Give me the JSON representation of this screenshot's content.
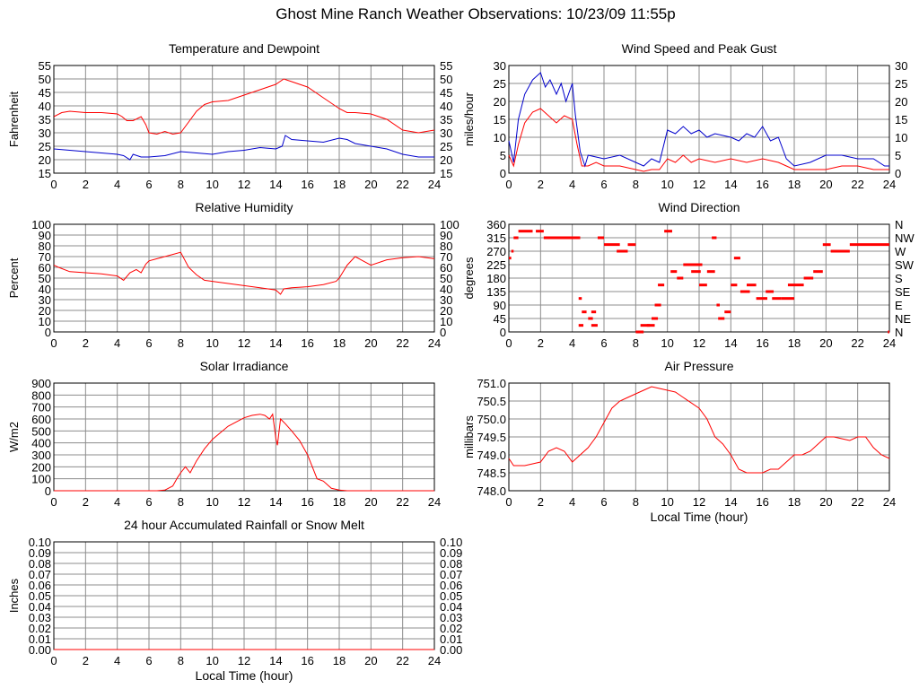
{
  "page": {
    "title": "Ghost Mine Ranch Weather Observations: 10/23/09 11:55p"
  },
  "colors": {
    "grid": "#8c8c8c",
    "frame": "#000000",
    "red": "#ff0000",
    "blue": "#0000cc"
  },
  "chart_data": [
    {
      "id": "temp",
      "type": "line",
      "title": "Temperature and Dewpoint",
      "xlabel": "",
      "ylabel": "Fahrenheit",
      "xlim": [
        0,
        24
      ],
      "ylim": [
        15,
        55
      ],
      "xticks": [
        "0",
        "2",
        "4",
        "6",
        "8",
        "10",
        "12",
        "14",
        "16",
        "18",
        "20",
        "22",
        "24"
      ],
      "yticks": [
        "15",
        "20",
        "25",
        "30",
        "35",
        "40",
        "45",
        "50",
        "55"
      ],
      "right_yticks": [
        "15",
        "20",
        "25",
        "30",
        "35",
        "40",
        "45",
        "50",
        "55"
      ],
      "series": [
        {
          "color": "#ff0000",
          "x": [
            0,
            0.5,
            1,
            2,
            3,
            4,
            4.3,
            4.6,
            5,
            5.5,
            5.8,
            6,
            6.5,
            7,
            7.5,
            8,
            8.5,
            9,
            9.5,
            10,
            11,
            12,
            13,
            14,
            14.5,
            15,
            16,
            17,
            18,
            18.5,
            19,
            20,
            21,
            22,
            22.5,
            23,
            24
          ],
          "y": [
            36,
            37.5,
            38,
            37.5,
            37.5,
            37,
            36,
            34.5,
            34.5,
            36,
            33,
            30,
            29.5,
            30.5,
            29.5,
            30,
            34,
            38,
            40.5,
            41.5,
            42,
            44,
            46,
            48,
            50,
            49,
            47,
            43,
            39,
            37.5,
            37.5,
            37,
            35,
            31,
            30.5,
            30,
            31
          ]
        },
        {
          "color": "#0000cc",
          "x": [
            0,
            1,
            2,
            3,
            4,
            4.4,
            4.8,
            5,
            5.5,
            6,
            7,
            8,
            9,
            10,
            11,
            12,
            13,
            14,
            14.4,
            14.6,
            15,
            16,
            17,
            18,
            18.5,
            19,
            20,
            21,
            22,
            23,
            24
          ],
          "y": [
            24,
            23.5,
            23,
            22.5,
            22,
            21.5,
            20,
            22,
            21,
            21,
            21.5,
            23,
            22.5,
            22,
            23,
            23.5,
            24.5,
            24,
            25,
            29,
            27.5,
            27,
            26.5,
            28,
            27.5,
            26,
            25,
            24,
            22,
            21,
            21
          ]
        }
      ]
    },
    {
      "id": "wind",
      "type": "line",
      "title": "Wind Speed and Peak Gust",
      "xlabel": "",
      "ylabel": "miles/hour",
      "xlim": [
        0,
        24
      ],
      "ylim": [
        0,
        30
      ],
      "xticks": [
        "0",
        "2",
        "4",
        "6",
        "8",
        "10",
        "12",
        "14",
        "16",
        "18",
        "20",
        "22",
        "24"
      ],
      "yticks": [
        "0",
        "5",
        "10",
        "15",
        "20",
        "25",
        "30"
      ],
      "right_yticks": [
        "0",
        "5",
        "10",
        "15",
        "20",
        "25",
        "30"
      ],
      "series": [
        {
          "color": "#ff0000",
          "x": [
            0,
            0.3,
            0.6,
            1,
            1.5,
            2,
            2.5,
            3,
            3.5,
            4,
            4.3,
            4.6,
            5,
            5.5,
            6,
            7,
            8,
            8.5,
            9,
            9.5,
            10,
            10.5,
            11,
            11.5,
            12,
            13,
            14,
            15,
            16,
            17,
            17.5,
            18,
            19,
            20,
            21,
            22,
            23,
            23.7,
            24
          ],
          "y": [
            5,
            2,
            8,
            14,
            17,
            18,
            16,
            14,
            16,
            15,
            8,
            2,
            2,
            3,
            2,
            2,
            1,
            0.5,
            1,
            1,
            4,
            3,
            5,
            3,
            4,
            3,
            4,
            3,
            4,
            3,
            2,
            1,
            1,
            1,
            2,
            2,
            1,
            1,
            1
          ]
        },
        {
          "color": "#0000cc",
          "x": [
            0,
            0.3,
            0.6,
            1,
            1.5,
            2,
            2.3,
            2.6,
            3,
            3.3,
            3.6,
            4,
            4.2,
            4.5,
            4.8,
            5,
            6,
            7,
            8,
            8.5,
            9,
            9.5,
            10,
            10.5,
            11,
            11.5,
            12,
            12.5,
            13,
            14,
            14.5,
            15,
            15.5,
            16,
            16.5,
            17,
            17.5,
            18,
            19,
            20,
            21,
            22,
            23,
            23.7,
            24
          ],
          "y": [
            9,
            3,
            15,
            22,
            26,
            28,
            24,
            26,
            22,
            25,
            20,
            25,
            16,
            6,
            2,
            5,
            4,
            5,
            3,
            2,
            4,
            3,
            12,
            11,
            13,
            11,
            12,
            10,
            11,
            10,
            9,
            11,
            10,
            13,
            9,
            10,
            4,
            2,
            3,
            5,
            5,
            4,
            4,
            2,
            2
          ]
        }
      ]
    },
    {
      "id": "rh",
      "type": "line",
      "title": "Relative Humidity",
      "xlabel": "",
      "ylabel": "Percent",
      "xlim": [
        0,
        24
      ],
      "ylim": [
        0,
        100
      ],
      "xticks": [
        "0",
        "2",
        "4",
        "6",
        "8",
        "10",
        "12",
        "14",
        "16",
        "18",
        "20",
        "22",
        "24"
      ],
      "yticks": [
        "0",
        "10",
        "20",
        "30",
        "40",
        "50",
        "60",
        "70",
        "80",
        "90",
        "100"
      ],
      "right_yticks": [
        "0",
        "10",
        "20",
        "30",
        "40",
        "50",
        "60",
        "70",
        "80",
        "90",
        "100"
      ],
      "series": [
        {
          "color": "#ff0000",
          "x": [
            0,
            0.3,
            1,
            2,
            3,
            4,
            4.4,
            4.8,
            5.2,
            5.5,
            5.8,
            6,
            6.5,
            7,
            7.5,
            8,
            8.5,
            9,
            9.5,
            10,
            11,
            12,
            13,
            14,
            14.3,
            14.5,
            15,
            16,
            17,
            17.8,
            18,
            18.5,
            19,
            19.5,
            20,
            21,
            22,
            23,
            24
          ],
          "y": [
            62,
            60,
            56,
            55,
            54,
            52,
            48,
            55,
            58,
            55,
            63,
            66,
            68,
            70,
            72,
            74,
            60,
            53,
            48,
            47,
            45,
            43,
            41,
            39,
            35,
            40,
            41,
            42,
            44,
            47,
            50,
            62,
            70,
            66,
            62,
            67,
            69,
            70,
            68
          ]
        }
      ]
    },
    {
      "id": "winddir",
      "type": "scatter",
      "title": "Wind Direction",
      "xlabel": "",
      "ylabel": "degrees",
      "xlim": [
        0,
        24
      ],
      "ylim": [
        0,
        360
      ],
      "xticks": [
        "0",
        "2",
        "4",
        "6",
        "8",
        "10",
        "12",
        "14",
        "16",
        "18",
        "20",
        "22",
        "24"
      ],
      "yticks": [
        "0",
        "45",
        "90",
        "135",
        "180",
        "225",
        "270",
        "315",
        "360"
      ],
      "right_yticks": [
        "N",
        "NE",
        "E",
        "SE",
        "S",
        "SW",
        "W",
        "NW",
        "N"
      ],
      "series": [
        {
          "color": "#ff0000",
          "segments": [
            [
              0,
              0.15,
              247
            ],
            [
              0.15,
              0.3,
              270
            ],
            [
              0.3,
              0.6,
              315
            ],
            [
              0.6,
              1.5,
              337
            ],
            [
              1.7,
              2.2,
              337
            ],
            [
              2.2,
              4.5,
              315
            ],
            [
              4.4,
              4.6,
              112
            ],
            [
              4.6,
              4.9,
              67
            ],
            [
              4.4,
              4.7,
              22
            ],
            [
              5.2,
              5.6,
              22
            ],
            [
              5.0,
              5.3,
              45
            ],
            [
              5.2,
              5.5,
              67
            ],
            [
              5.6,
              6,
              315
            ],
            [
              6,
              7,
              292
            ],
            [
              6.8,
              7.5,
              270
            ],
            [
              7.5,
              8,
              292
            ],
            [
              8,
              8.5,
              0
            ],
            [
              8.3,
              8.9,
              22
            ],
            [
              8.7,
              9.2,
              22
            ],
            [
              9.0,
              9.4,
              45
            ],
            [
              9.2,
              9.6,
              90
            ],
            [
              9.4,
              9.8,
              157
            ],
            [
              9.8,
              10.3,
              337
            ],
            [
              10.2,
              10.6,
              202
            ],
            [
              10.6,
              11,
              180
            ],
            [
              11,
              12.2,
              225
            ],
            [
              11.5,
              12.1,
              202
            ],
            [
              12,
              12.5,
              157
            ],
            [
              12.5,
              13,
              202
            ],
            [
              12.8,
              13.1,
              315
            ],
            [
              13.1,
              13.3,
              90
            ],
            [
              13.2,
              13.6,
              45
            ],
            [
              13.6,
              14,
              67
            ],
            [
              14,
              14.4,
              157
            ],
            [
              14.2,
              14.6,
              247
            ],
            [
              14.6,
              15.2,
              135
            ],
            [
              15,
              15.6,
              157
            ],
            [
              15.6,
              16.3,
              112
            ],
            [
              16.2,
              16.7,
              135
            ],
            [
              16.6,
              17.2,
              112
            ],
            [
              17.2,
              18,
              112
            ],
            [
              17.6,
              18.6,
              157
            ],
            [
              18.6,
              19.2,
              180
            ],
            [
              19.2,
              19.8,
              202
            ],
            [
              19.8,
              20.3,
              292
            ],
            [
              20.3,
              21.5,
              270
            ],
            [
              21.5,
              24,
              292
            ],
            [
              23.9,
              24,
              0
            ]
          ]
        }
      ]
    },
    {
      "id": "solar",
      "type": "area",
      "title": "Solar Irradiance",
      "xlabel": "",
      "ylabel": "W/m2",
      "xlim": [
        0,
        24
      ],
      "ylim": [
        0,
        900
      ],
      "xticks": [
        "0",
        "2",
        "4",
        "6",
        "8",
        "10",
        "12",
        "14",
        "16",
        "18",
        "20",
        "22",
        "24"
      ],
      "yticks": [
        "0",
        "100",
        "200",
        "300",
        "400",
        "500",
        "600",
        "700",
        "800",
        "900"
      ],
      "right_yticks": [],
      "series": [
        {
          "color": "#ff0000",
          "x": [
            0,
            6.5,
            7,
            7.5,
            7.8,
            8,
            8.3,
            8.6,
            9,
            9.5,
            10,
            11,
            12,
            12.5,
            13,
            13.3,
            13.6,
            13.8,
            14,
            14.1,
            14.3,
            14.6,
            15,
            15.5,
            16,
            16.3,
            16.6,
            17,
            17.5,
            18,
            18.5,
            24
          ],
          "y": [
            0,
            0,
            5,
            40,
            110,
            150,
            200,
            150,
            250,
            350,
            430,
            540,
            610,
            630,
            640,
            630,
            600,
            640,
            440,
            380,
            600,
            560,
            500,
            420,
            300,
            200,
            100,
            80,
            20,
            5,
            0,
            0
          ]
        }
      ]
    },
    {
      "id": "pressure",
      "type": "line",
      "title": "Air Pressure",
      "xlabel": "Local Time (hour)",
      "ylabel": "millibars",
      "xlim": [
        0,
        24
      ],
      "ylim": [
        748.0,
        751.0
      ],
      "xticks": [
        "0",
        "2",
        "4",
        "6",
        "8",
        "10",
        "12",
        "14",
        "16",
        "18",
        "20",
        "22",
        "24"
      ],
      "yticks": [
        "748.0",
        "748.5",
        "749.0",
        "749.5",
        "750.0",
        "750.5",
        "751.0"
      ],
      "right_yticks": [],
      "series": [
        {
          "color": "#ff0000",
          "x": [
            0,
            0.3,
            1,
            2,
            2.5,
            3,
            3.5,
            4,
            4.5,
            5,
            5.5,
            6,
            6.5,
            7,
            7.5,
            8,
            8.5,
            9,
            9.5,
            10,
            10.5,
            11,
            12,
            12.5,
            13,
            13.5,
            14,
            14.5,
            15,
            15.5,
            16,
            16.5,
            17,
            17.5,
            18,
            18.5,
            19,
            19.5,
            20,
            20.5,
            21,
            21.5,
            22,
            22.5,
            23,
            23.5,
            24
          ],
          "y": [
            748.9,
            748.7,
            748.7,
            748.8,
            749.1,
            749.2,
            749.1,
            748.8,
            749.0,
            749.2,
            749.5,
            749.9,
            750.3,
            750.5,
            750.6,
            750.7,
            750.8,
            750.9,
            750.85,
            750.8,
            750.75,
            750.6,
            750.3,
            750.0,
            749.5,
            749.3,
            749.0,
            748.6,
            748.5,
            748.5,
            748.5,
            748.6,
            748.6,
            748.8,
            749.0,
            749.0,
            749.1,
            749.3,
            749.5,
            749.5,
            749.45,
            749.4,
            749.5,
            749.5,
            749.2,
            749.0,
            748.9
          ]
        }
      ]
    },
    {
      "id": "rain",
      "type": "line",
      "title": "24 hour Accumulated Rainfall or Snow Melt",
      "xlabel": "Local Time (hour)",
      "ylabel": "Inches",
      "xlim": [
        0,
        24
      ],
      "ylim": [
        0,
        0.1
      ],
      "xticks": [
        "0",
        "2",
        "4",
        "6",
        "8",
        "10",
        "12",
        "14",
        "16",
        "18",
        "20",
        "22",
        "24"
      ],
      "yticks": [
        "0.00",
        "0.01",
        "0.02",
        "0.03",
        "0.04",
        "0.05",
        "0.06",
        "0.07",
        "0.08",
        "0.09",
        "0.10"
      ],
      "right_yticks": [
        "0.00",
        "0.01",
        "0.02",
        "0.03",
        "0.04",
        "0.05",
        "0.06",
        "0.07",
        "0.08",
        "0.09",
        "0.10"
      ],
      "series": [
        {
          "color": "#ff0000",
          "x": [
            0,
            24
          ],
          "y": [
            0,
            0
          ]
        }
      ]
    }
  ]
}
